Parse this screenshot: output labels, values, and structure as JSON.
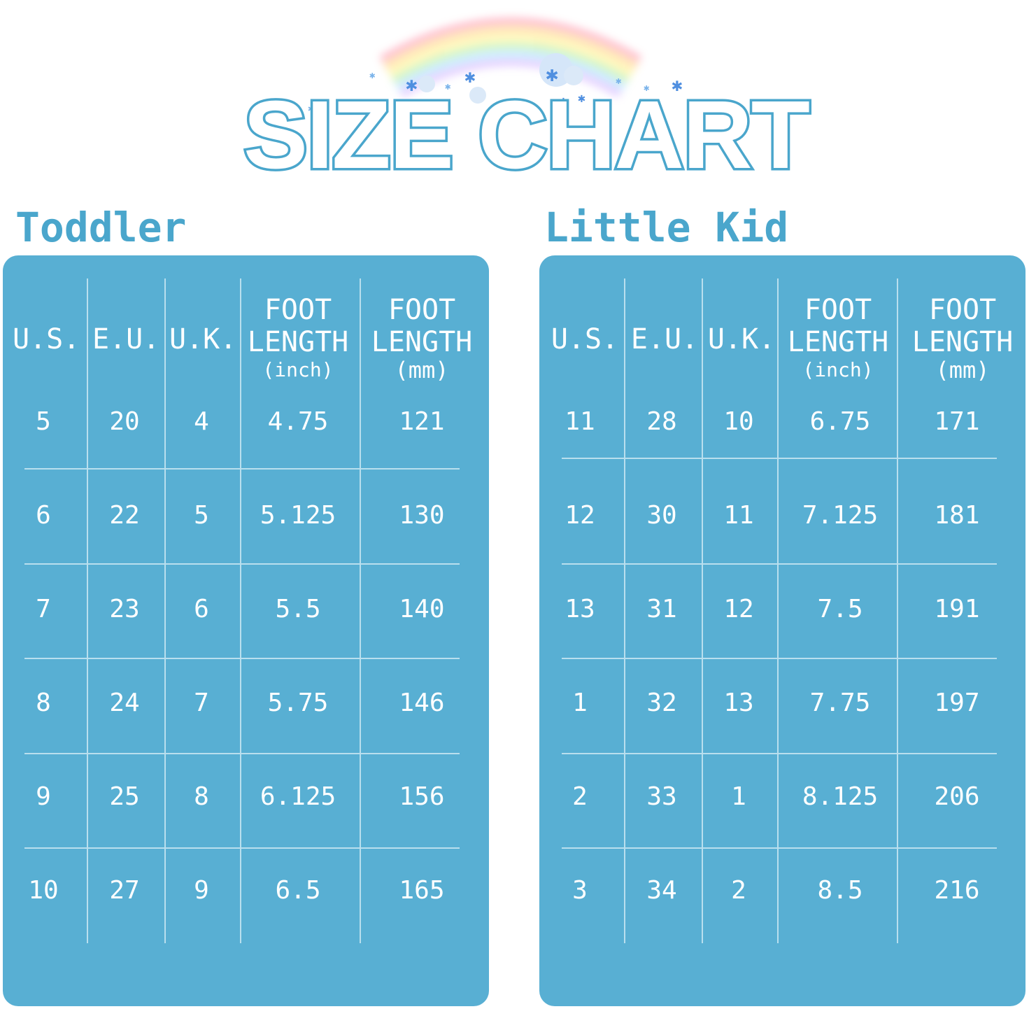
{
  "title": "SIZE CHART",
  "columns": {
    "us": "U.S.",
    "eu": "E.U.",
    "uk": "U.K.",
    "foot_length": "FOOT",
    "length": "LENGTH",
    "inch_unit": "(inch)",
    "mm_unit": "(mm)"
  },
  "toddler": {
    "title": "Toddler",
    "rows": [
      {
        "us": "5",
        "eu": "20",
        "uk": "4",
        "inch": "4.75",
        "mm": "121"
      },
      {
        "us": "6",
        "eu": "22",
        "uk": "5",
        "inch": "5.125",
        "mm": "130"
      },
      {
        "us": "7",
        "eu": "23",
        "uk": "6",
        "inch": "5.5",
        "mm": "140"
      },
      {
        "us": "8",
        "eu": "24",
        "uk": "7",
        "inch": "5.75",
        "mm": "146"
      },
      {
        "us": "9",
        "eu": "25",
        "uk": "8",
        "inch": "6.125",
        "mm": "156"
      },
      {
        "us": "10",
        "eu": "27",
        "uk": "9",
        "inch": "6.5",
        "mm": "165"
      }
    ]
  },
  "little_kid": {
    "title": "Little Kid",
    "rows": [
      {
        "us": "11",
        "eu": "28",
        "uk": "10",
        "inch": "6.75",
        "mm": "171"
      },
      {
        "us": "12",
        "eu": "30",
        "uk": "11",
        "inch": "7.125",
        "mm": "181"
      },
      {
        "us": "13",
        "eu": "31",
        "uk": "12",
        "inch": "7.5",
        "mm": "191"
      },
      {
        "us": "1",
        "eu": "32",
        "uk": "13",
        "inch": "7.75",
        "mm": "197"
      },
      {
        "us": "2",
        "eu": "33",
        "uk": "1",
        "inch": "8.125",
        "mm": "206"
      },
      {
        "us": "3",
        "eu": "34",
        "uk": "2",
        "inch": "8.5",
        "mm": "216"
      }
    ]
  },
  "colors": {
    "panel": "#58afd3",
    "title_text": "#4aa6cc",
    "title_fill": "#ffffff",
    "grid_line": "#b9dfee",
    "cell_text": "#ffffff"
  }
}
